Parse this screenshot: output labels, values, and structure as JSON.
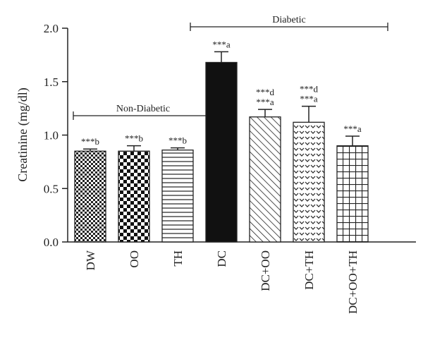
{
  "chart_data": {
    "type": "bar",
    "ylabel": "Creatinine (mg/dl)",
    "ylim": [
      0,
      2.0
    ],
    "yticks": [
      "0.0",
      "0.5",
      "1.0",
      "1.5",
      "2.0"
    ],
    "grid": false,
    "categories": [
      "DW",
      "OO",
      "TH",
      "DC",
      "DC+OO",
      "DC+TH",
      "DC+OO+TH"
    ],
    "values": [
      0.85,
      0.85,
      0.86,
      1.68,
      1.17,
      1.12,
      0.9
    ],
    "errors": [
      0.02,
      0.05,
      0.02,
      0.1,
      0.07,
      0.15,
      0.09
    ],
    "patterns": [
      "small-checker",
      "large-checker",
      "horizontal-lines",
      "solid-black",
      "diagonal-lines",
      "chevrons",
      "grid"
    ],
    "significance": [
      [
        "***b"
      ],
      [
        "***b"
      ],
      [
        "***b"
      ],
      [
        "***a"
      ],
      [
        "***d",
        "***a"
      ],
      [
        "***d",
        "***a"
      ],
      [
        "***a"
      ]
    ],
    "groups": [
      {
        "label": "Non-Diabetic",
        "from": "DW",
        "to": "TH"
      },
      {
        "label": "Diabetic",
        "from": "DC",
        "to": "DC+OO+TH"
      }
    ]
  }
}
